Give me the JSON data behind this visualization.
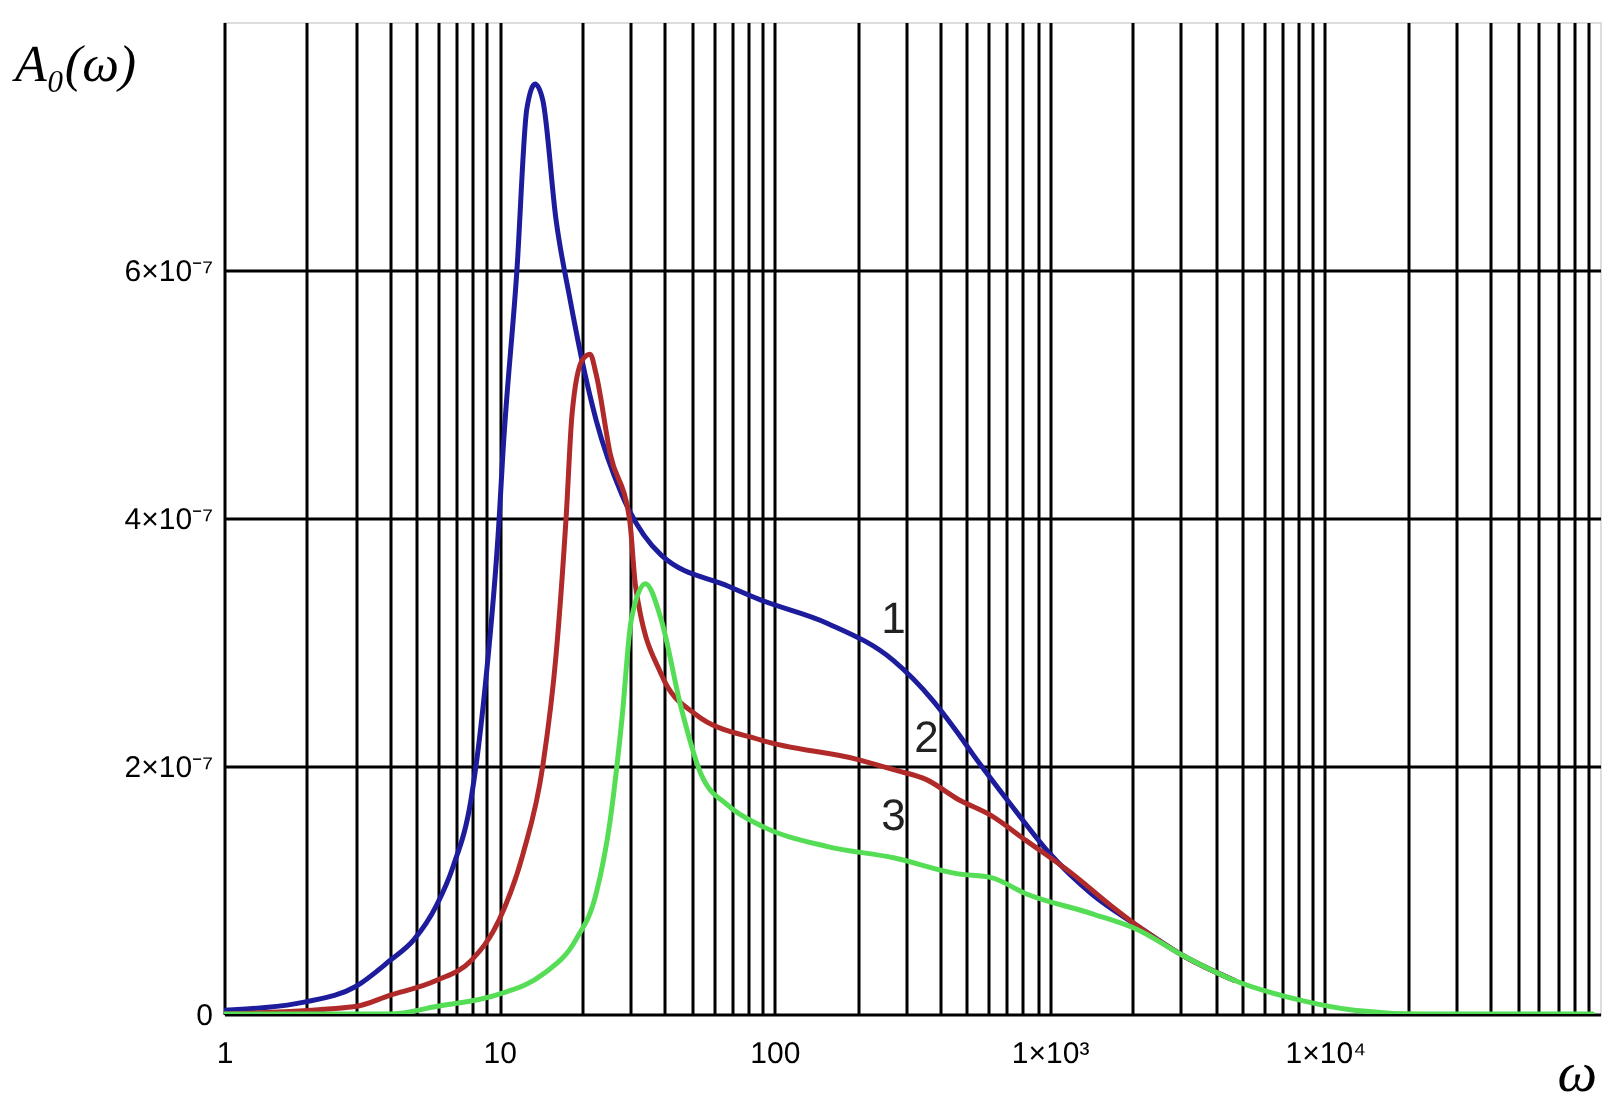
{
  "chart_data": {
    "type": "line",
    "xlabel": "ω",
    "ylabel": "A₀(ω)",
    "log": "x",
    "grid": true,
    "marker": "none",
    "line_style": "solid",
    "xlim": [
      1,
      100000
    ],
    "ylim": [
      0,
      8e-07
    ],
    "xticks": [
      1,
      {
        "value": 2,
        "label": null
      },
      {
        "value": 3,
        "label": null
      },
      {
        "value": 4,
        "label": null
      },
      {
        "value": 5,
        "label": null
      },
      {
        "value": 6,
        "label": null
      },
      {
        "value": 7,
        "label": null
      },
      {
        "value": 8,
        "label": null
      },
      {
        "value": 9,
        "label": null
      },
      10,
      {
        "value": 20,
        "label": null
      },
      {
        "value": 30,
        "label": null
      },
      {
        "value": 40,
        "label": null
      },
      {
        "value": 50,
        "label": null
      },
      {
        "value": 60,
        "label": null
      },
      {
        "value": 70,
        "label": null
      },
      {
        "value": 80,
        "label": null
      },
      {
        "value": 90,
        "label": null
      },
      100,
      {
        "value": 200,
        "label": null
      },
      {
        "value": 300,
        "label": null
      },
      {
        "value": 400,
        "label": null
      },
      {
        "value": 500,
        "label": null
      },
      {
        "value": 600,
        "label": null
      },
      {
        "value": 700,
        "label": null
      },
      {
        "value": 800,
        "label": null
      },
      {
        "value": 900,
        "label": null
      },
      {
        "value": 1000,
        "label": "1×10³"
      },
      {
        "value": 2000,
        "label": null
      },
      {
        "value": 3000,
        "label": null
      },
      {
        "value": 4000,
        "label": null
      },
      {
        "value": 5000,
        "label": null
      },
      {
        "value": 6000,
        "label": null
      },
      {
        "value": 7000,
        "label": null
      },
      {
        "value": 8000,
        "label": null
      },
      {
        "value": 9000,
        "label": null
      },
      {
        "value": 10000,
        "label": "1×10⁴"
      },
      {
        "value": 20000,
        "label": null
      },
      {
        "value": 30000,
        "label": null
      },
      {
        "value": 40000,
        "label": null
      },
      {
        "value": 50000,
        "label": null
      },
      {
        "value": 60000,
        "label": null
      },
      {
        "value": 70000,
        "label": null
      },
      {
        "value": 80000,
        "label": null
      },
      {
        "value": 90000,
        "label": null
      }
    ],
    "yticks": [
      0,
      {
        "value": 2e-07,
        "label": "2×10⁻⁷"
      },
      {
        "value": 4e-07,
        "label": "4×10⁻⁷"
      },
      {
        "value": 6e-07,
        "label": "6×10⁻⁷"
      }
    ],
    "series": [
      {
        "name": "1",
        "color": "#1c1c9c",
        "x": [
          1,
          2,
          3,
          4,
          4.9,
          5.9,
          6.8,
          7.9,
          8.9,
          10,
          10.3,
          11.6,
          12.6,
          13.5,
          14.4,
          16.1,
          18.1,
          20,
          22.5,
          27.9,
          38.8,
          68,
          89,
          156,
          271,
          376,
          466,
          524,
          728,
          1005,
          1420,
          2090,
          3060,
          4700
        ],
        "values": [
          3e-09,
          1e-08,
          2.2e-08,
          4.3e-08,
          6e-08,
          8.7e-08,
          1.19e-07,
          1.73e-07,
          2.65e-07,
          4e-07,
          4.5e-07,
          6e-07,
          7.3e-07,
          7.5e-07,
          7.37e-07,
          6.4e-07,
          5.76e-07,
          5.27e-07,
          4.79e-07,
          4.19e-07,
          3.7e-07,
          3.45e-07,
          3.34e-07,
          3.15e-07,
          2.85e-07,
          2.53e-07,
          2.26e-07,
          2.1e-07,
          1.68e-07,
          1.29e-07,
          9.7e-08,
          7.1e-08,
          4.7e-08,
          2.7e-08
        ]
      },
      {
        "name": "2",
        "color": "#b02a2a",
        "x": [
          1,
          3,
          4,
          5.9,
          7.9,
          10,
          12.2,
          14.4,
          16.1,
          17.5,
          18.4,
          20,
          21.4,
          22.5,
          25.3,
          29.8,
          31.3,
          38.8,
          51.5,
          89,
          203,
          271,
          357,
          466,
          614,
          820,
          1210,
          1680,
          2090,
          3060,
          4700
        ],
        "values": [
          0,
          6e-09,
          1.5e-08,
          2.7e-08,
          4.3e-08,
          7.6e-08,
          1.29e-07,
          2e-07,
          2.9e-07,
          4e-07,
          4.84e-07,
          5.27e-07,
          5.32e-07,
          5.16e-07,
          4.52e-07,
          3.98e-07,
          3.45e-07,
          2.74e-07,
          2.42e-07,
          2.21e-07,
          2.05e-07,
          1.97e-07,
          1.89e-07,
          1.73e-07,
          1.6e-07,
          1.4e-07,
          1.13e-07,
          8.7e-08,
          7.1e-08,
          4.7e-08,
          2.7e-08
        ]
      },
      {
        "name": "3",
        "color": "#55dd55",
        "x": [
          1,
          4,
          5.9,
          10,
          14.4,
          19,
          22.5,
          25.3,
          27.9,
          30.2,
          34,
          38.8,
          45.7,
          54,
          68,
          89,
          156,
          271,
          466,
          614,
          820,
          1420,
          2090,
          3060,
          4700,
          8200,
          12800,
          22000,
          94000
        ],
        "values": [
          0,
          0,
          6e-09,
          1.6e-08,
          3.2e-08,
          6e-08,
          9.7e-08,
          1.56e-07,
          2.37e-07,
          3.18e-07,
          3.47e-07,
          3.18e-07,
          2.48e-07,
          1.94e-07,
          1.68e-07,
          1.52e-07,
          1.35e-07,
          1.26e-07,
          1.13e-07,
          1.1e-07,
          9.7e-08,
          8.1e-08,
          6.8e-08,
          4.7e-08,
          2.7e-08,
          1.1e-08,
          3e-09,
          0,
          0
        ]
      }
    ]
  }
}
